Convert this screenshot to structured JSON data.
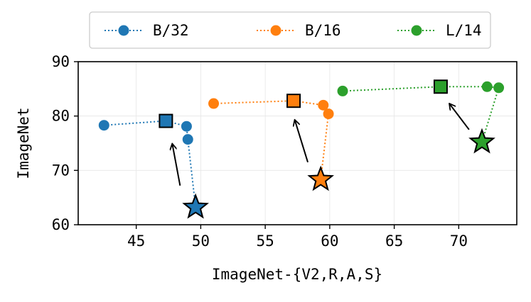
{
  "chart_data": {
    "type": "scatter",
    "xlabel": "ImageNet-{V2,R,A,S}",
    "ylabel": "ImageNet",
    "xlim": [
      40.5,
      74.5
    ],
    "ylim": [
      60,
      90
    ],
    "xticks": [
      45,
      50,
      55,
      60,
      65,
      70
    ],
    "yticks": [
      60,
      70,
      80,
      90
    ],
    "grid": true,
    "legend": {
      "placement": "top-center",
      "ncol": 3
    },
    "series": [
      {
        "name": "B/32",
        "color": "#1f77b4",
        "curve": [
          {
            "x": 42.5,
            "y": 78.3
          },
          {
            "x": 47.3,
            "y": 79.1
          },
          {
            "x": 48.9,
            "y": 78.1
          },
          {
            "x": 49.0,
            "y": 75.7
          },
          {
            "x": 49.6,
            "y": 63.2
          }
        ],
        "best": {
          "x": 47.3,
          "y": 79.1
        },
        "start": {
          "x": 49.6,
          "y": 63.2
        },
        "arrow_from": {
          "x": 48.4,
          "y": 67.2
        },
        "arrow_to": {
          "x": 47.8,
          "y": 74.8
        }
      },
      {
        "name": "B/16",
        "color": "#ff7f0e",
        "curve": [
          {
            "x": 51.0,
            "y": 82.3
          },
          {
            "x": 57.2,
            "y": 82.8
          },
          {
            "x": 59.5,
            "y": 82.0
          },
          {
            "x": 59.9,
            "y": 80.4
          },
          {
            "x": 59.3,
            "y": 68.3
          }
        ],
        "best": {
          "x": 57.2,
          "y": 82.8
        },
        "start": {
          "x": 59.3,
          "y": 68.3
        },
        "arrow_from": {
          "x": 58.3,
          "y": 71.5
        },
        "arrow_to": {
          "x": 57.3,
          "y": 79.2
        }
      },
      {
        "name": "L/14",
        "color": "#2ca02c",
        "curve": [
          {
            "x": 61.0,
            "y": 84.6
          },
          {
            "x": 68.6,
            "y": 85.4
          },
          {
            "x": 72.2,
            "y": 85.4
          },
          {
            "x": 73.1,
            "y": 85.2
          },
          {
            "x": 71.8,
            "y": 75.2
          }
        ],
        "best": {
          "x": 68.6,
          "y": 85.4
        },
        "start": {
          "x": 71.8,
          "y": 75.2
        },
        "arrow_from": {
          "x": 70.8,
          "y": 77.5
        },
        "arrow_to": {
          "x": 69.3,
          "y": 82.2
        }
      }
    ]
  }
}
